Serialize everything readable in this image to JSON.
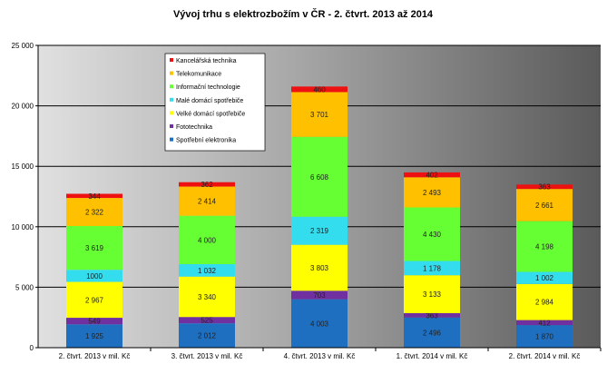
{
  "chart_data": {
    "type": "bar",
    "stacked": true,
    "title": "Vývoj trhu s elektrozbožím v ČR - 2. čtvrt. 2013 až 2014",
    "xlabel": "",
    "ylabel": "",
    "ylim": [
      0,
      25000
    ],
    "yticks": [
      "0",
      "5 000",
      "10 000",
      "15 000",
      "20 000",
      "25 000"
    ],
    "ytick_values": [
      0,
      5000,
      10000,
      15000,
      20000,
      25000
    ],
    "grid": true,
    "legend_position": "top-left",
    "categories": [
      "2. čtvrt. 2013 v mil. Kč",
      "3. čtvrt. 2013 v mil. Kč",
      "4. čtvrt. 2013 v mil. Kč",
      "1. čtvrt. 2014 v mil. Kč",
      "2. čtvrt. 2014 v mil. Kč"
    ],
    "series": [
      {
        "name": "Spotřební elektronika",
        "color": "#1f6fc0",
        "values": [
          1925,
          2012,
          4003,
          2496,
          1870
        ],
        "labels": [
          "1 925",
          "2 012",
          "4 003",
          "2 496",
          "1 870"
        ]
      },
      {
        "name": "Fototechnika",
        "color": "#7030a0",
        "values": [
          549,
          525,
          703,
          363,
          412
        ],
        "labels": [
          "549",
          "525",
          "703",
          "363",
          "412"
        ]
      },
      {
        "name": "Velké domácí spotřebiče",
        "color": "#ffff00",
        "values": [
          2967,
          3340,
          3803,
          3133,
          2984
        ],
        "labels": [
          "2 967",
          "3 340",
          "3 803",
          "3 133",
          "2 984"
        ]
      },
      {
        "name": "Malé domácí spotřebiče",
        "color": "#33ddee",
        "values": [
          1000,
          1032,
          2319,
          1178,
          1002
        ],
        "labels": [
          "1000",
          "1 032",
          "2 319",
          "1 178",
          "1 002"
        ]
      },
      {
        "name": "Informační technologie",
        "color": "#66ff33",
        "values": [
          3619,
          4000,
          6608,
          4430,
          4198
        ],
        "labels": [
          "3 619",
          "4 000",
          "6 608",
          "4 430",
          "4 198"
        ]
      },
      {
        "name": "Telekomunikace",
        "color": "#ffc000",
        "values": [
          2322,
          2414,
          3701,
          2493,
          2661
        ],
        "labels": [
          "2 322",
          "2 414",
          "3 701",
          "2 493",
          "2 661"
        ]
      },
      {
        "name": "Kancelářská technika",
        "color": "#ee1111",
        "values": [
          344,
          362,
          460,
          402,
          363
        ],
        "labels": [
          "344",
          "362",
          "460",
          "402",
          "363"
        ]
      }
    ]
  }
}
